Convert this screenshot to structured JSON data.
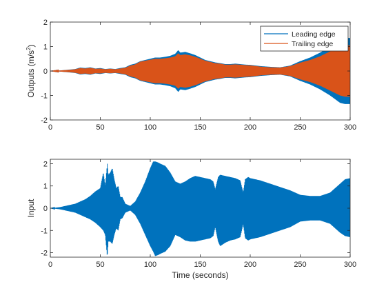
{
  "chart_data": [
    {
      "type": "line",
      "title": "",
      "xlabel": "",
      "ylabel": "Outputs (m/s",
      "ylabel_sup": "2",
      "ylabel_close": ")",
      "xlim": [
        0,
        300
      ],
      "ylim": [
        -2,
        2
      ],
      "xticks": [
        "0",
        "50",
        "100",
        "150",
        "200",
        "250",
        "300"
      ],
      "yticks": [
        "-2",
        "-1",
        "0",
        "1",
        "2"
      ],
      "grid": false,
      "legend_location": "top-right",
      "series": [
        {
          "name": "Leading edge",
          "color": "#0072BD",
          "envelope_t": [
            0,
            10,
            20,
            25,
            30,
            35,
            40,
            45,
            50,
            55,
            60,
            65,
            70,
            75,
            80,
            85,
            90,
            95,
            100,
            105,
            110,
            115,
            120,
            125,
            128,
            130,
            135,
            140,
            145,
            150,
            155,
            160,
            165,
            170,
            175,
            180,
            185,
            190,
            195,
            200,
            210,
            220,
            230,
            240,
            250,
            260,
            270,
            280,
            285,
            290,
            295,
            300
          ],
          "envelope_amp": [
            0,
            0.02,
            0.06,
            0.08,
            0.14,
            0.12,
            0.15,
            0.1,
            0.12,
            0.08,
            0.1,
            0.08,
            0.12,
            0.15,
            0.25,
            0.3,
            0.4,
            0.45,
            0.5,
            0.55,
            0.55,
            0.58,
            0.62,
            0.7,
            0.85,
            0.75,
            0.78,
            0.72,
            0.65,
            0.55,
            0.45,
            0.4,
            0.35,
            0.32,
            0.28,
            0.28,
            0.3,
            0.28,
            0.26,
            0.25,
            0.2,
            0.17,
            0.15,
            0.22,
            0.4,
            0.55,
            0.75,
            1.0,
            1.15,
            1.3,
            1.35,
            1.35
          ]
        },
        {
          "name": "Trailing edge",
          "color": "#D95319",
          "envelope_t": [
            0,
            10,
            20,
            25,
            30,
            35,
            40,
            45,
            50,
            55,
            60,
            65,
            70,
            75,
            80,
            85,
            90,
            95,
            100,
            105,
            110,
            115,
            120,
            125,
            128,
            130,
            135,
            140,
            145,
            150,
            155,
            160,
            165,
            170,
            175,
            180,
            185,
            190,
            195,
            200,
            210,
            220,
            230,
            240,
            250,
            260,
            270,
            280,
            285,
            290,
            295,
            300
          ],
          "envelope_amp": [
            0,
            0.02,
            0.05,
            0.07,
            0.12,
            0.1,
            0.13,
            0.09,
            0.1,
            0.07,
            0.09,
            0.07,
            0.1,
            0.13,
            0.22,
            0.27,
            0.38,
            0.42,
            0.46,
            0.5,
            0.5,
            0.52,
            0.55,
            0.6,
            0.72,
            0.65,
            0.68,
            0.64,
            0.58,
            0.5,
            0.42,
            0.37,
            0.32,
            0.3,
            0.26,
            0.26,
            0.27,
            0.26,
            0.24,
            0.23,
            0.18,
            0.15,
            0.14,
            0.2,
            0.34,
            0.45,
            0.6,
            0.8,
            0.9,
            1.0,
            1.05,
            1.05
          ]
        }
      ]
    },
    {
      "type": "line",
      "title": "",
      "xlabel": "Time (seconds)",
      "ylabel": "Input",
      "xlim": [
        0,
        300
      ],
      "ylim": [
        -2.2,
        2.2
      ],
      "xticks": [
        "0",
        "50",
        "100",
        "150",
        "200",
        "250",
        "300"
      ],
      "yticks": [
        "-2",
        "-1",
        "0",
        "1",
        "2"
      ],
      "grid": false,
      "series": [
        {
          "color": "#0072BD",
          "envelope_t": [
            0,
            5,
            10,
            15,
            20,
            25,
            30,
            35,
            40,
            45,
            50,
            53,
            55,
            57,
            58,
            60,
            62,
            64,
            66,
            68,
            70,
            72,
            75,
            80,
            85,
            90,
            95,
            100,
            103,
            105,
            108,
            110,
            115,
            120,
            125,
            130,
            135,
            140,
            145,
            150,
            155,
            160,
            163,
            165,
            168,
            170,
            175,
            180,
            185,
            190,
            193,
            195,
            198,
            200,
            205,
            210,
            220,
            230,
            240,
            250,
            260,
            270,
            280,
            285,
            290,
            295,
            300
          ],
          "envelope_upper": [
            0,
            0.02,
            0.05,
            0.1,
            0.15,
            0.2,
            0.3,
            0.4,
            0.55,
            0.75,
            0.9,
            1.6,
            1.0,
            2.0,
            1.5,
            1.6,
            1.8,
            1.3,
            0.9,
            1.0,
            0.5,
            0.5,
            0.2,
            0.1,
            0.3,
            0.7,
            1.2,
            1.8,
            2.1,
            2.1,
            2.05,
            2.0,
            1.9,
            1.6,
            1.2,
            1.1,
            1.2,
            1.35,
            1.45,
            1.4,
            1.35,
            1.3,
            1.2,
            0.85,
            1.4,
            1.5,
            1.45,
            1.4,
            1.35,
            1.25,
            0.7,
            1.3,
            1.4,
            1.35,
            1.3,
            1.25,
            1.1,
            0.95,
            0.8,
            0.6,
            0.55,
            0.55,
            0.7,
            0.9,
            1.1,
            1.3,
            1.35
          ],
          "envelope_lower": [
            0,
            -0.02,
            -0.05,
            -0.1,
            -0.15,
            -0.2,
            -0.3,
            -0.4,
            -0.5,
            -0.65,
            -0.85,
            -1.0,
            -1.2,
            -2.2,
            -1.5,
            -1.5,
            -1.6,
            -1.2,
            -0.9,
            -1.0,
            -0.5,
            -0.45,
            -0.2,
            -0.1,
            -0.3,
            -0.7,
            -1.2,
            -1.7,
            -1.95,
            -2.15,
            -2.1,
            -2.05,
            -1.95,
            -1.7,
            -1.2,
            -1.3,
            -1.45,
            -1.5,
            -1.5,
            -1.45,
            -1.4,
            -1.35,
            -1.25,
            -0.85,
            -1.5,
            -1.7,
            -1.55,
            -1.45,
            -1.4,
            -1.3,
            -0.7,
            -1.35,
            -1.45,
            -1.4,
            -1.35,
            -1.3,
            -1.15,
            -1.0,
            -0.85,
            -0.6,
            -0.55,
            -0.55,
            -0.7,
            -0.9,
            -1.1,
            -1.25,
            -1.3
          ]
        }
      ]
    }
  ]
}
